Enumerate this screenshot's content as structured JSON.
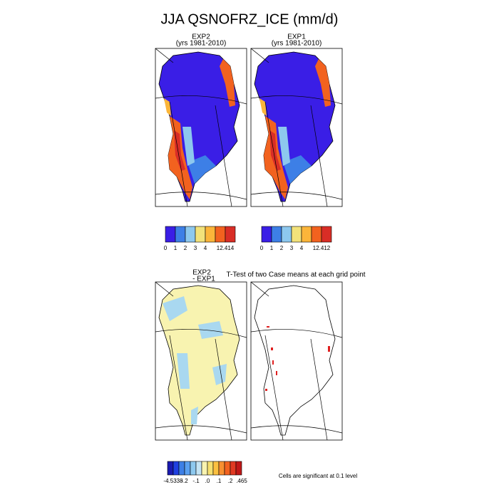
{
  "title": "JJA QSNOFRZ_ICE (mm/d)",
  "panels": [
    {
      "title": "EXP2",
      "subtitle": "(yrs 1981-2010)"
    },
    {
      "title": "EXP1",
      "subtitle": "(yrs 1981-2010)"
    },
    {
      "title": "EXP2",
      "subtitle": "- EXP1"
    },
    {
      "title": "T-Test of two Case means at each grid point"
    }
  ],
  "colorbars": [
    {
      "labels": [
        "0",
        "1",
        "2",
        "3",
        "4",
        "12.414"
      ]
    },
    {
      "labels": [
        "0",
        "1",
        "2",
        "3",
        "4",
        "12.412"
      ]
    },
    {
      "labels": [
        "-4.5338",
        "-.2",
        "-.1",
        ".0",
        ".1",
        ".2",
        ".465"
      ]
    }
  ],
  "note": "Cells are significant at 0.1 level"
}
